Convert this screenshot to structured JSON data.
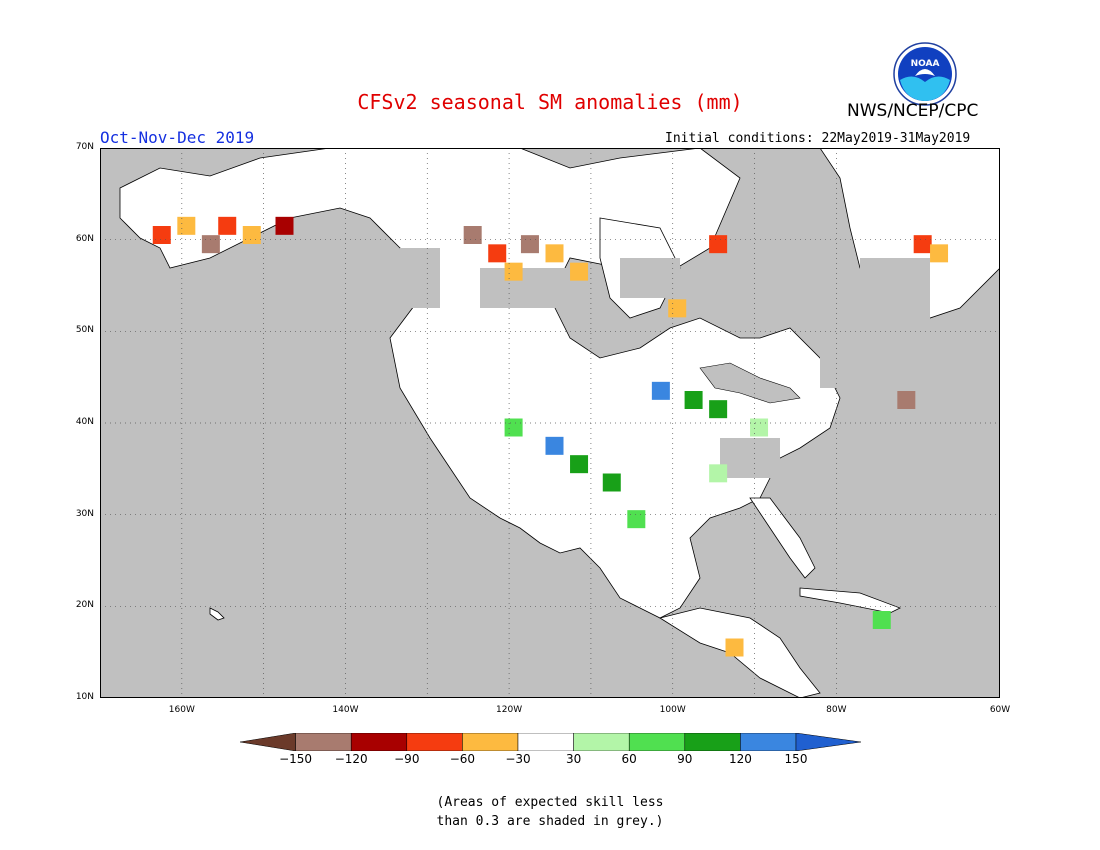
{
  "header": {
    "title": "CFSv2 seasonal SM anomalies (mm)",
    "agency": "NWS/NCEP/CPC",
    "logo_text": "NOAA",
    "season": "Oct-Nov-Dec 2019",
    "initial_conditions": "Initial conditions: 22May2019-31May2019"
  },
  "map": {
    "lon_range": [
      -170,
      -60
    ],
    "lat_range": [
      10,
      70
    ],
    "lat_labels": [
      "70N",
      "60N",
      "50N",
      "40N",
      "30N",
      "20N",
      "10N"
    ],
    "lon_labels": [
      "160W",
      "140W",
      "120W",
      "100W",
      "80W",
      "60W"
    ],
    "land_color": "#ffffff",
    "ocean_color": "#c0c0c0",
    "low_skill_color": "#c0c0c0"
  },
  "legend": {
    "ticks": [
      "-150",
      "-120",
      "-90",
      "-60",
      "-30",
      "30",
      "60",
      "90",
      "120",
      "150"
    ],
    "colors": [
      "#6b3a2a",
      "#a87b6f",
      "#a80000",
      "#f53c10",
      "#fdba40",
      "#ffffff",
      "#b3f5a8",
      "#50e050",
      "#18a018",
      "#3a86e0",
      "#2060d0"
    ]
  },
  "note": "(Areas of expected skill less\nthan 0.3 are shaded in grey.)",
  "anomaly_cells": [
    {
      "lon": -163,
      "lat": 61,
      "value": -90
    },
    {
      "lon": -160,
      "lat": 62,
      "value": -60
    },
    {
      "lon": -157,
      "lat": 60,
      "value": -130
    },
    {
      "lon": -155,
      "lat": 62,
      "value": -90
    },
    {
      "lon": -152,
      "lat": 61,
      "value": -60
    },
    {
      "lon": -148,
      "lat": 62,
      "value": -120
    },
    {
      "lon": -125,
      "lat": 61,
      "value": -130
    },
    {
      "lon": -122,
      "lat": 59,
      "value": -90
    },
    {
      "lon": -118,
      "lat": 60,
      "value": -130
    },
    {
      "lon": -115,
      "lat": 59,
      "value": -60
    },
    {
      "lon": -120,
      "lat": 57,
      "value": -60
    },
    {
      "lon": -112,
      "lat": 57,
      "value": -45
    },
    {
      "lon": -100,
      "lat": 53,
      "value": -45
    },
    {
      "lon": -95,
      "lat": 60,
      "value": -90
    },
    {
      "lon": -70,
      "lat": 60,
      "value": -90
    },
    {
      "lon": -68,
      "lat": 59,
      "value": -60
    },
    {
      "lon": -72,
      "lat": 43,
      "value": -130
    },
    {
      "lon": -102,
      "lat": 44,
      "value": 130
    },
    {
      "lon": -98,
      "lat": 43,
      "value": 100
    },
    {
      "lon": -95,
      "lat": 42,
      "value": 100
    },
    {
      "lon": -108,
      "lat": 34,
      "value": 100
    },
    {
      "lon": -112,
      "lat": 36,
      "value": 100
    },
    {
      "lon": -115,
      "lat": 38,
      "value": 130
    },
    {
      "lon": -120,
      "lat": 40,
      "value": 75
    },
    {
      "lon": -105,
      "lat": 30,
      "value": 75
    },
    {
      "lon": -90,
      "lat": 40,
      "value": 45
    },
    {
      "lon": -95,
      "lat": 35,
      "value": 45
    },
    {
      "lon": -93,
      "lat": 16,
      "value": -45
    },
    {
      "lon": -75,
      "lat": 19,
      "value": 75
    }
  ]
}
